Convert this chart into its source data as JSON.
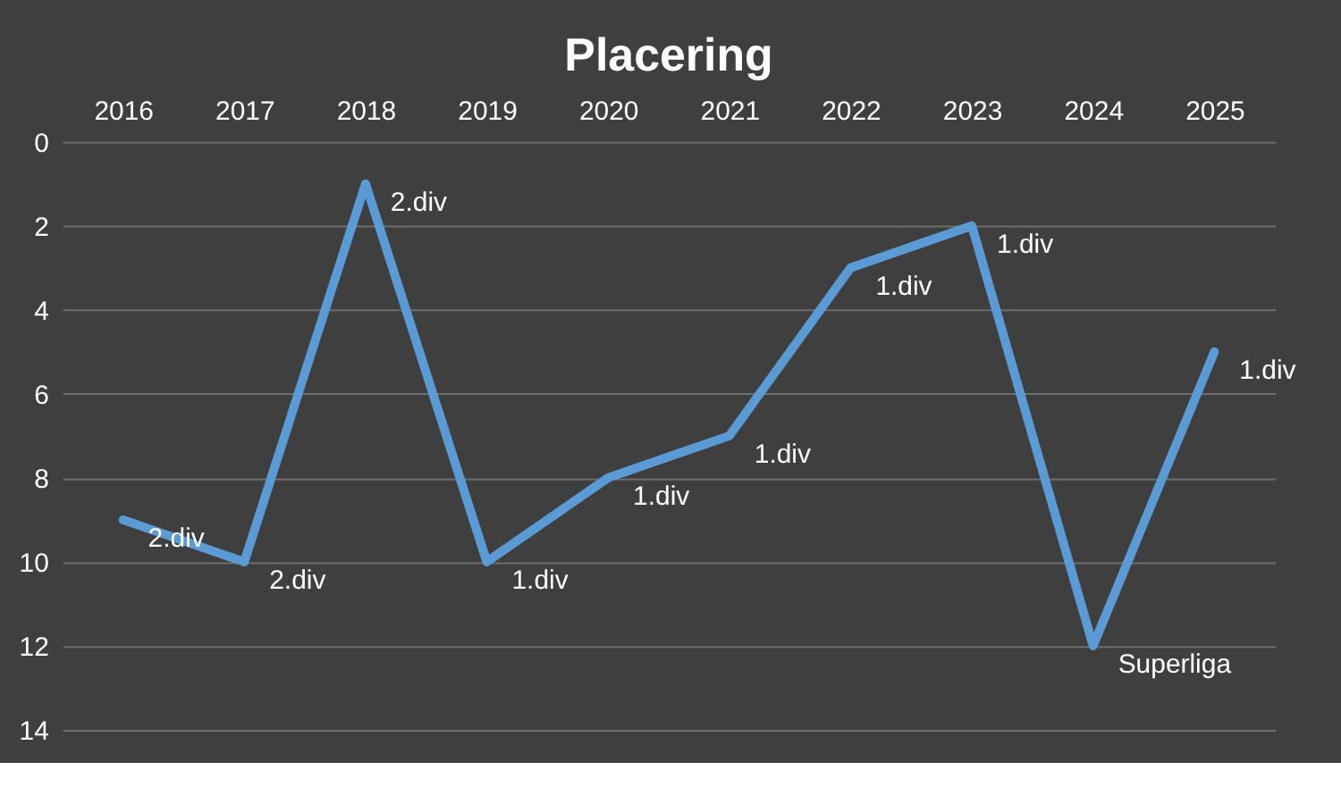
{
  "chart_data": {
    "type": "line",
    "title": "Placering",
    "categories": [
      "2016",
      "2017",
      "2018",
      "2019",
      "2020",
      "2021",
      "2022",
      "2023",
      "2024",
      "2025"
    ],
    "series": [
      {
        "color": "#5b9bd5",
        "values": [
          9,
          10,
          1,
          10,
          8,
          7,
          3,
          2,
          12,
          5
        ]
      }
    ],
    "annotations": [
      {
        "text": "2.div",
        "x": "2016",
        "y": 9
      },
      {
        "text": "2.div",
        "x": "2017",
        "y": 10
      },
      {
        "text": "2.div",
        "x": "2018",
        "y": 1
      },
      {
        "text": "1.div",
        "x": "2019",
        "y": 10
      },
      {
        "text": "1.div",
        "x": "2020",
        "y": 8
      },
      {
        "text": "1.div",
        "x": "2021",
        "y": 7
      },
      {
        "text": "1.div",
        "x": "2022",
        "y": 3
      },
      {
        "text": "1.div",
        "x": "2023",
        "y": 2
      },
      {
        "text": "Superliga",
        "x": "2024",
        "y": 12
      },
      {
        "text": "1.div",
        "x": "2025",
        "y": 5
      }
    ],
    "ylim": [
      14,
      0
    ],
    "yticks": [
      0,
      2,
      4,
      6,
      8,
      10,
      12,
      14
    ],
    "grid": "y",
    "marker": "none",
    "line_style": "solid"
  }
}
